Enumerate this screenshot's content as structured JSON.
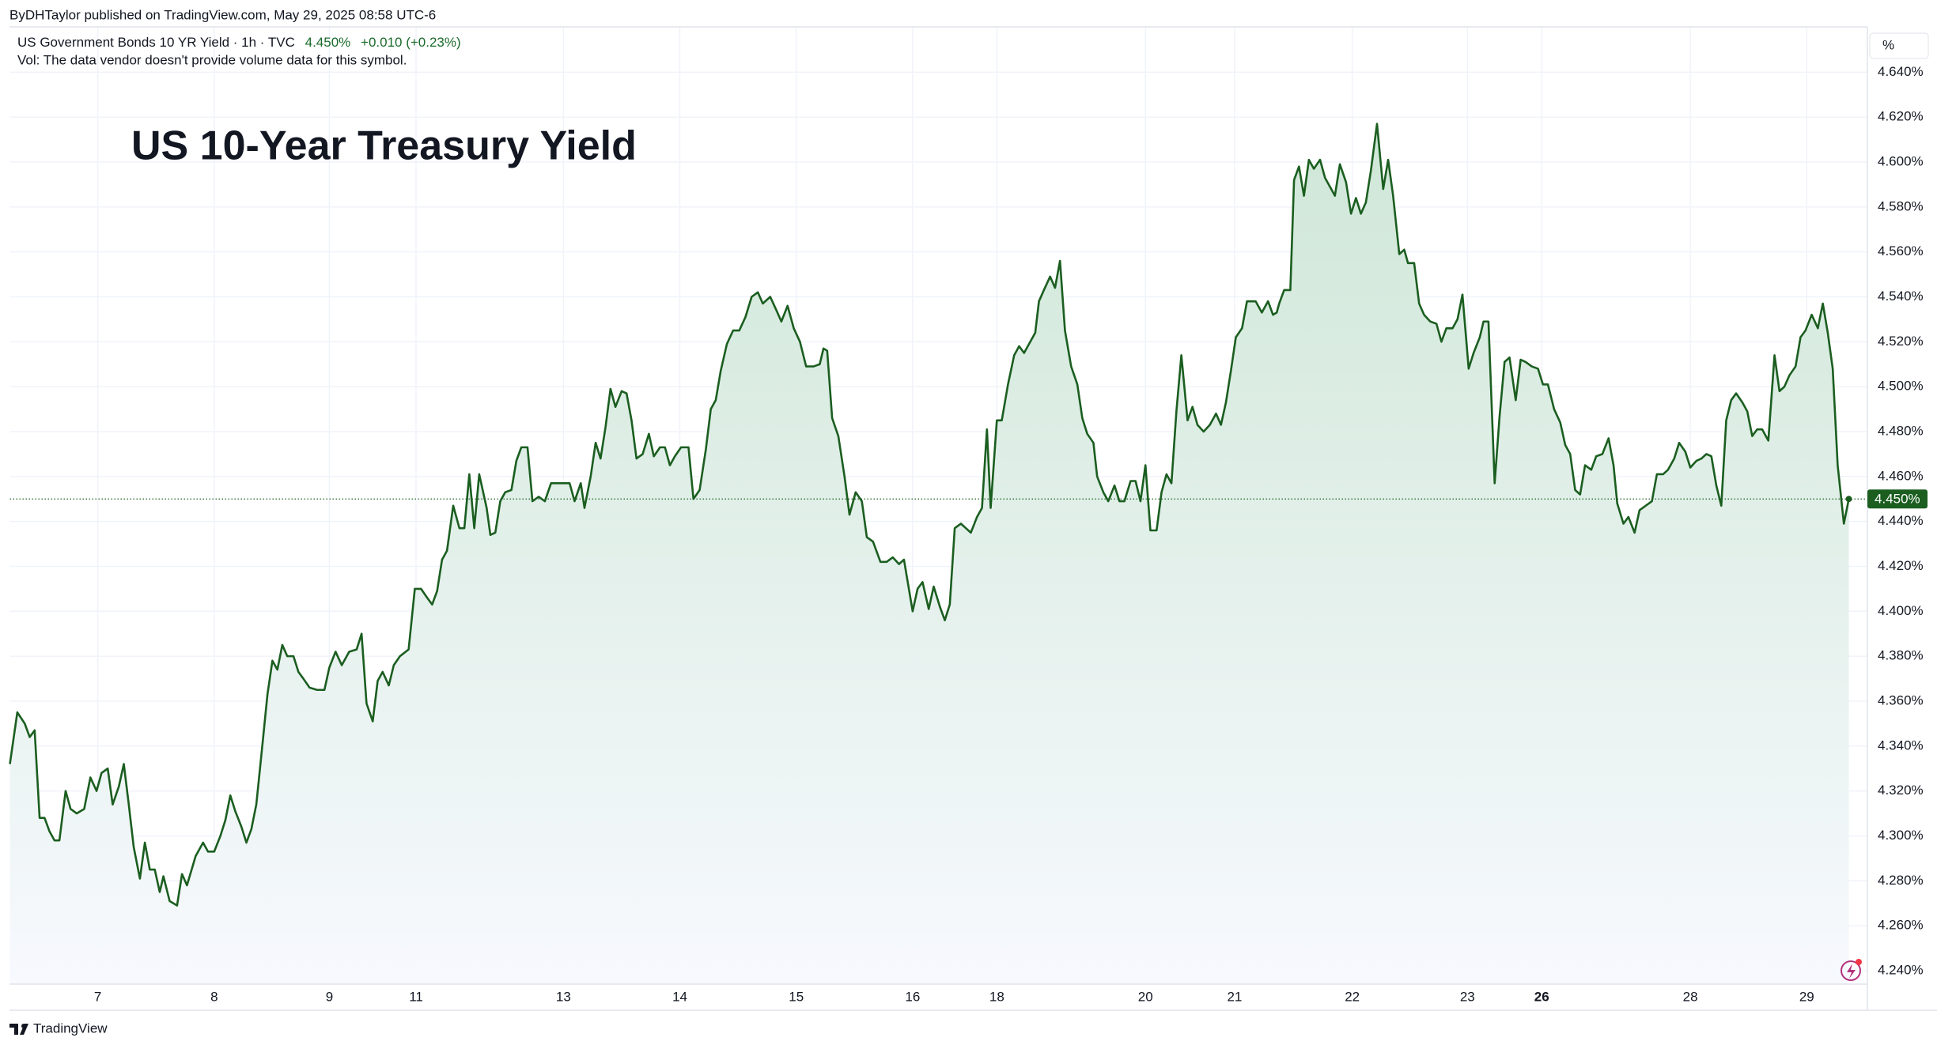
{
  "chart_data": {
    "type": "line",
    "publisher_line": "ByDHTaylor published on TradingView.com, May 29, 2025 08:58 UTC-6",
    "symbol_line": "US Government Bonds 10 YR Yield · 1h · TVC",
    "symbol_price": "4.450%",
    "symbol_change": "+0.010 (+0.23%)",
    "volume_note": "Vol: The data vendor doesn't provide volume data for this symbol.",
    "title": "US 10-Year Treasury Yield",
    "unit_label": "%",
    "brand": "TradingView",
    "last_price": 4.45,
    "last_price_label": "4.450%",
    "color": "#1b5e20",
    "title_color": "#13977a",
    "grid": true,
    "xlim": [
      0,
      1500
    ],
    "ylim": [
      4.234,
      4.66
    ],
    "xticks": [
      {
        "value": 71,
        "label": "7"
      },
      {
        "value": 165,
        "label": "8"
      },
      {
        "value": 258,
        "label": "9"
      },
      {
        "value": 328,
        "label": "11"
      },
      {
        "value": 447,
        "label": "13"
      },
      {
        "value": 541,
        "label": "14"
      },
      {
        "value": 635,
        "label": "15"
      },
      {
        "value": 729,
        "label": "16"
      },
      {
        "value": 797,
        "label": "18"
      },
      {
        "value": 917,
        "label": "20"
      },
      {
        "value": 989,
        "label": "21"
      },
      {
        "value": 1084,
        "label": "22"
      },
      {
        "value": 1177,
        "label": "23"
      },
      {
        "value": 1237,
        "label": "26",
        "bold": true
      },
      {
        "value": 1357,
        "label": "28"
      },
      {
        "value": 1451,
        "label": "29"
      }
    ],
    "yticks": [
      {
        "value": 4.24,
        "label": "4.240%"
      },
      {
        "value": 4.26,
        "label": "4.260%"
      },
      {
        "value": 4.28,
        "label": "4.280%"
      },
      {
        "value": 4.3,
        "label": "4.300%"
      },
      {
        "value": 4.32,
        "label": "4.320%"
      },
      {
        "value": 4.34,
        "label": "4.340%"
      },
      {
        "value": 4.36,
        "label": "4.360%"
      },
      {
        "value": 4.38,
        "label": "4.380%"
      },
      {
        "value": 4.4,
        "label": "4.400%"
      },
      {
        "value": 4.42,
        "label": "4.420%"
      },
      {
        "value": 4.44,
        "label": "4.440%"
      },
      {
        "value": 4.46,
        "label": "4.460%"
      },
      {
        "value": 4.48,
        "label": "4.480%"
      },
      {
        "value": 4.5,
        "label": "4.500%"
      },
      {
        "value": 4.52,
        "label": "4.520%"
      },
      {
        "value": 4.54,
        "label": "4.540%"
      },
      {
        "value": 4.56,
        "label": "4.560%"
      },
      {
        "value": 4.58,
        "label": "4.580%"
      },
      {
        "value": 4.6,
        "label": "4.600%"
      },
      {
        "value": 4.62,
        "label": "4.620%"
      },
      {
        "value": 4.64,
        "label": "4.640%"
      }
    ],
    "x": [
      0,
      6,
      12,
      16,
      20,
      24,
      28,
      32,
      36,
      40,
      45,
      49,
      54,
      60,
      65,
      70,
      74,
      79,
      83,
      88,
      92,
      96,
      100,
      105,
      109,
      113,
      117,
      121,
      124,
      129,
      135,
      139,
      143,
      150,
      156,
      160,
      165,
      170,
      174,
      178,
      182,
      187,
      191,
      195,
      199,
      204,
      208,
      212,
      216,
      220,
      224,
      229,
      233,
      237,
      242,
      248,
      254,
      258,
      263,
      268,
      274,
      280,
      284,
      288,
      293,
      297,
      301,
      306,
      310,
      315,
      322,
      327,
      332,
      337,
      341,
      345,
      349,
      353,
      358,
      363,
      367,
      371,
      375,
      379,
      385,
      388,
      392,
      396,
      400,
      405,
      409,
      413,
      418,
      422,
      427,
      432,
      437,
      443,
      448,
      452,
      456,
      461,
      464,
      469,
      473,
      477,
      481,
      485,
      489,
      494,
      498,
      502,
      506,
      511,
      516,
      520,
      525,
      529,
      533,
      537,
      542,
      548,
      552,
      557,
      562,
      566,
      570,
      574,
      579,
      584,
      589,
      594,
      599,
      604,
      608,
      614,
      619,
      623,
      628,
      633,
      638,
      643,
      649,
      654,
      657,
      660,
      664,
      669,
      674,
      678,
      683,
      688,
      692,
      697,
      703,
      708,
      713,
      718,
      722,
      729,
      733,
      737,
      742,
      746,
      751,
      755,
      759,
      763,
      768,
      772,
      776,
      781,
      785,
      789,
      792,
      797,
      801,
      806,
      811,
      815,
      819,
      823,
      828,
      831,
      835,
      840,
      844,
      848,
      852,
      857,
      862,
      866,
      870,
      875,
      878,
      883,
      887,
      892,
      896,
      900,
      905,
      909,
      913,
      917,
      921,
      926,
      930,
      934,
      938,
      942,
      946,
      951,
      955,
      959,
      964,
      969,
      974,
      978,
      982,
      986,
      990,
      995,
      999,
      1006,
      1011,
      1016,
      1020,
      1023,
      1025,
      1029,
      1034,
      1037,
      1041,
      1045,
      1049,
      1053,
      1058,
      1062,
      1066,
      1070,
      1074,
      1079,
      1083,
      1087,
      1091,
      1095,
      1099,
      1104,
      1109,
      1113,
      1117,
      1122,
      1126,
      1129,
      1134,
      1138,
      1142,
      1147,
      1152,
      1156,
      1160,
      1165,
      1169,
      1173,
      1178,
      1182,
      1187,
      1190,
      1194,
      1199,
      1203,
      1207,
      1211,
      1216,
      1220,
      1224,
      1229,
      1234,
      1238,
      1242,
      1247,
      1252,
      1256,
      1260,
      1264,
      1268,
      1272,
      1277,
      1281,
      1286,
      1291,
      1295,
      1298,
      1303,
      1307,
      1312,
      1316,
      1321,
      1326,
      1330,
      1335,
      1339,
      1344,
      1348,
      1353,
      1357,
      1362,
      1366,
      1370,
      1374,
      1378,
      1382,
      1386,
      1390,
      1394,
      1399,
      1403,
      1407,
      1411,
      1415,
      1420,
      1425,
      1429,
      1433,
      1437,
      1442,
      1446,
      1450,
      1455,
      1460,
      1464,
      1468,
      1472,
      1476,
      1481,
      1485
    ],
    "values": [
      4.332,
      4.355,
      4.35,
      4.344,
      4.347,
      4.308,
      4.308,
      4.302,
      4.298,
      4.298,
      4.32,
      4.312,
      4.31,
      4.312,
      4.326,
      4.32,
      4.328,
      4.33,
      4.314,
      4.322,
      4.332,
      4.314,
      4.295,
      4.281,
      4.297,
      4.285,
      4.285,
      4.275,
      4.282,
      4.271,
      4.269,
      4.283,
      4.278,
      4.291,
      4.297,
      4.293,
      4.293,
      4.3,
      4.307,
      4.318,
      4.311,
      4.304,
      4.297,
      4.303,
      4.314,
      4.341,
      4.363,
      4.378,
      4.374,
      4.385,
      4.38,
      4.38,
      4.373,
      4.37,
      4.366,
      4.365,
      4.365,
      4.375,
      4.382,
      4.376,
      4.382,
      4.383,
      4.39,
      4.359,
      4.351,
      4.369,
      4.373,
      4.367,
      4.376,
      4.38,
      4.383,
      4.41,
      4.41,
      4.406,
      4.403,
      4.409,
      4.423,
      4.427,
      4.447,
      4.437,
      4.437,
      4.461,
      4.437,
      4.461,
      4.446,
      4.434,
      4.435,
      4.449,
      4.453,
      4.454,
      4.467,
      4.473,
      4.473,
      4.449,
      4.451,
      4.449,
      4.457,
      4.457,
      4.457,
      4.457,
      4.449,
      4.457,
      4.446,
      4.46,
      4.475,
      4.468,
      4.482,
      4.499,
      4.491,
      4.498,
      4.497,
      4.485,
      4.468,
      4.47,
      4.479,
      4.469,
      4.473,
      4.473,
      4.465,
      4.469,
      4.473,
      4.473,
      4.45,
      4.454,
      4.472,
      4.49,
      4.494,
      4.507,
      4.519,
      4.525,
      4.525,
      4.531,
      4.54,
      4.542,
      4.537,
      4.54,
      4.534,
      4.529,
      4.536,
      4.526,
      4.52,
      4.509,
      4.509,
      4.51,
      4.517,
      4.516,
      4.486,
      4.478,
      4.46,
      4.443,
      4.453,
      4.449,
      4.433,
      4.431,
      4.422,
      4.422,
      4.424,
      4.421,
      4.423,
      4.4,
      4.41,
      4.413,
      4.401,
      4.411,
      4.402,
      4.396,
      4.403,
      4.437,
      4.439,
      4.437,
      4.435,
      4.442,
      4.446,
      4.481,
      4.446,
      4.485,
      4.485,
      4.501,
      4.514,
      4.518,
      4.515,
      4.519,
      4.524,
      4.538,
      4.543,
      4.549,
      4.544,
      4.556,
      4.525,
      4.509,
      4.501,
      4.486,
      4.479,
      4.475,
      4.46,
      4.453,
      4.449,
      4.456,
      4.449,
      4.449,
      4.458,
      4.458,
      4.449,
      4.465,
      4.436,
      4.436,
      4.453,
      4.461,
      4.457,
      4.489,
      4.514,
      4.485,
      4.491,
      4.483,
      4.48,
      4.483,
      4.488,
      4.483,
      4.493,
      4.507,
      4.522,
      4.526,
      4.538,
      4.538,
      4.533,
      4.538,
      4.532,
      4.533,
      4.537,
      4.543,
      4.543,
      4.592,
      4.598,
      4.585,
      4.601,
      4.597,
      4.601,
      4.593,
      4.589,
      4.585,
      4.599,
      4.591,
      4.577,
      4.584,
      4.577,
      4.582,
      4.596,
      4.617,
      4.588,
      4.601,
      4.585,
      4.559,
      4.561,
      4.555,
      4.555,
      4.537,
      4.532,
      4.529,
      4.528,
      4.52,
      4.526,
      4.526,
      4.53,
      4.541,
      4.508,
      4.515,
      4.522,
      4.529,
      4.529,
      4.457,
      4.487,
      4.511,
      4.513,
      4.494,
      4.512,
      4.511,
      4.509,
      4.508,
      4.501,
      4.501,
      4.49,
      4.484,
      4.474,
      4.47,
      4.454,
      4.452,
      4.465,
      4.463,
      4.469,
      4.47,
      4.477,
      4.465,
      4.448,
      4.439,
      4.442,
      4.435,
      4.445,
      4.447,
      4.449,
      4.461,
      4.461,
      4.463,
      4.468,
      4.475,
      4.471,
      4.464,
      4.467,
      4.468,
      4.47,
      4.469,
      4.456,
      4.447,
      4.485,
      4.494,
      4.497,
      4.493,
      4.489,
      4.478,
      4.481,
      4.481,
      4.476,
      4.514,
      4.498,
      4.5,
      4.505,
      4.509,
      4.522,
      4.525,
      4.532,
      4.526,
      4.537,
      4.524,
      4.508,
      4.465,
      4.439,
      4.45
    ]
  }
}
